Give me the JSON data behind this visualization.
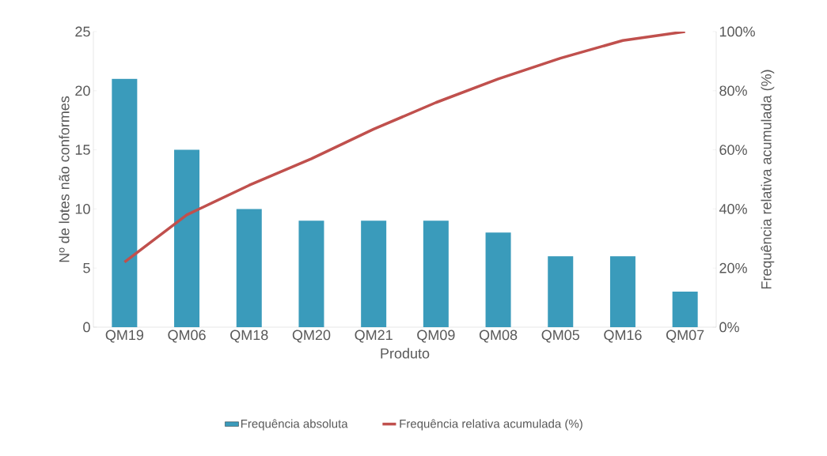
{
  "chart_data": {
    "type": "bar",
    "xlabel": "Produto",
    "ylabel": "Nº de lotes não conformes",
    "y2label": "Frequência relativa acumulada (%)",
    "categories": [
      "QM19",
      "QM06",
      "QM18",
      "QM20",
      "QM21",
      "QM09",
      "QM08",
      "QM05",
      "QM16",
      "QM07"
    ],
    "series": [
      {
        "name": "Frequência absoluta",
        "color": "#3a9bbb",
        "values": [
          21,
          15,
          10,
          9,
          9,
          9,
          8,
          6,
          6,
          3
        ]
      },
      {
        "name": "Frequência relativa acumulada (%)",
        "type": "line",
        "axis": "y2",
        "color": "#c0504d",
        "values": [
          22,
          38,
          48,
          57,
          67,
          76,
          84,
          91,
          97,
          100
        ]
      }
    ],
    "ylim": [
      0,
      25
    ],
    "yticks": [
      0,
      5,
      10,
      15,
      20,
      25
    ],
    "y2lim": [
      0,
      100
    ],
    "y2ticks": [
      {
        "value": 0,
        "label": "0%"
      },
      {
        "value": 20,
        "label": "20%"
      },
      {
        "value": 40,
        "label": "40%"
      },
      {
        "value": 60,
        "label": "60%"
      },
      {
        "value": 80,
        "label": "80%"
      },
      {
        "value": 100,
        "label": "100%"
      }
    ],
    "legend": "bottom"
  }
}
